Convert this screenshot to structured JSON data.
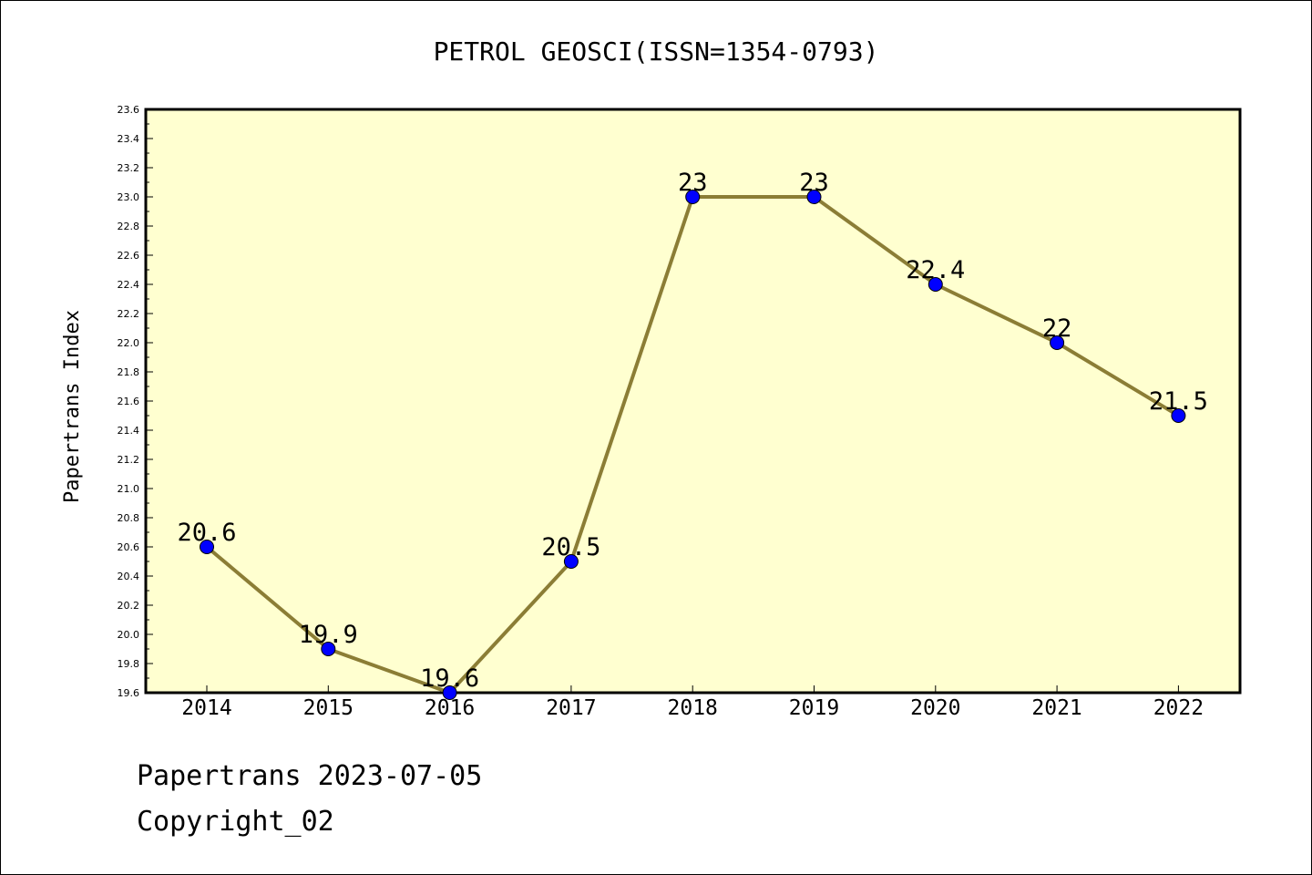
{
  "chart_data": {
    "type": "line",
    "title": "PETROL GEOSCI(ISSN=1354-0793)",
    "xlabel": "",
    "ylabel": "Papertrans Index",
    "categories": [
      "2014",
      "2015",
      "2016",
      "2017",
      "2018",
      "2019",
      "2020",
      "2021",
      "2022"
    ],
    "series": [
      {
        "values": [
          20.6,
          19.9,
          19.6,
          20.5,
          23,
          23,
          22.4,
          22,
          21.5
        ],
        "data_labels": [
          "20.6",
          "19.9",
          "19.6",
          "20.5",
          "23",
          "23",
          "22.4",
          "22",
          "21.5"
        ]
      }
    ],
    "ylim": [
      19.6,
      23.6
    ],
    "yticks": [
      "19.6",
      "19.8",
      "20.0",
      "20.2",
      "20.4",
      "20.6",
      "20.8",
      "21.0",
      "21.2",
      "21.4",
      "21.6",
      "21.8",
      "22.0",
      "22.2",
      "22.4",
      "22.6",
      "22.8",
      "23.0",
      "23.2",
      "23.4",
      "23.6"
    ],
    "grid": false,
    "legend": "none",
    "colors": {
      "plot_background": "#ffffd0",
      "line": "#8b7d35",
      "marker": "#0000ff",
      "axis": "#000000"
    }
  },
  "footer": {
    "line1": "Papertrans 2023-07-05",
    "line2": "Copyright_02"
  }
}
